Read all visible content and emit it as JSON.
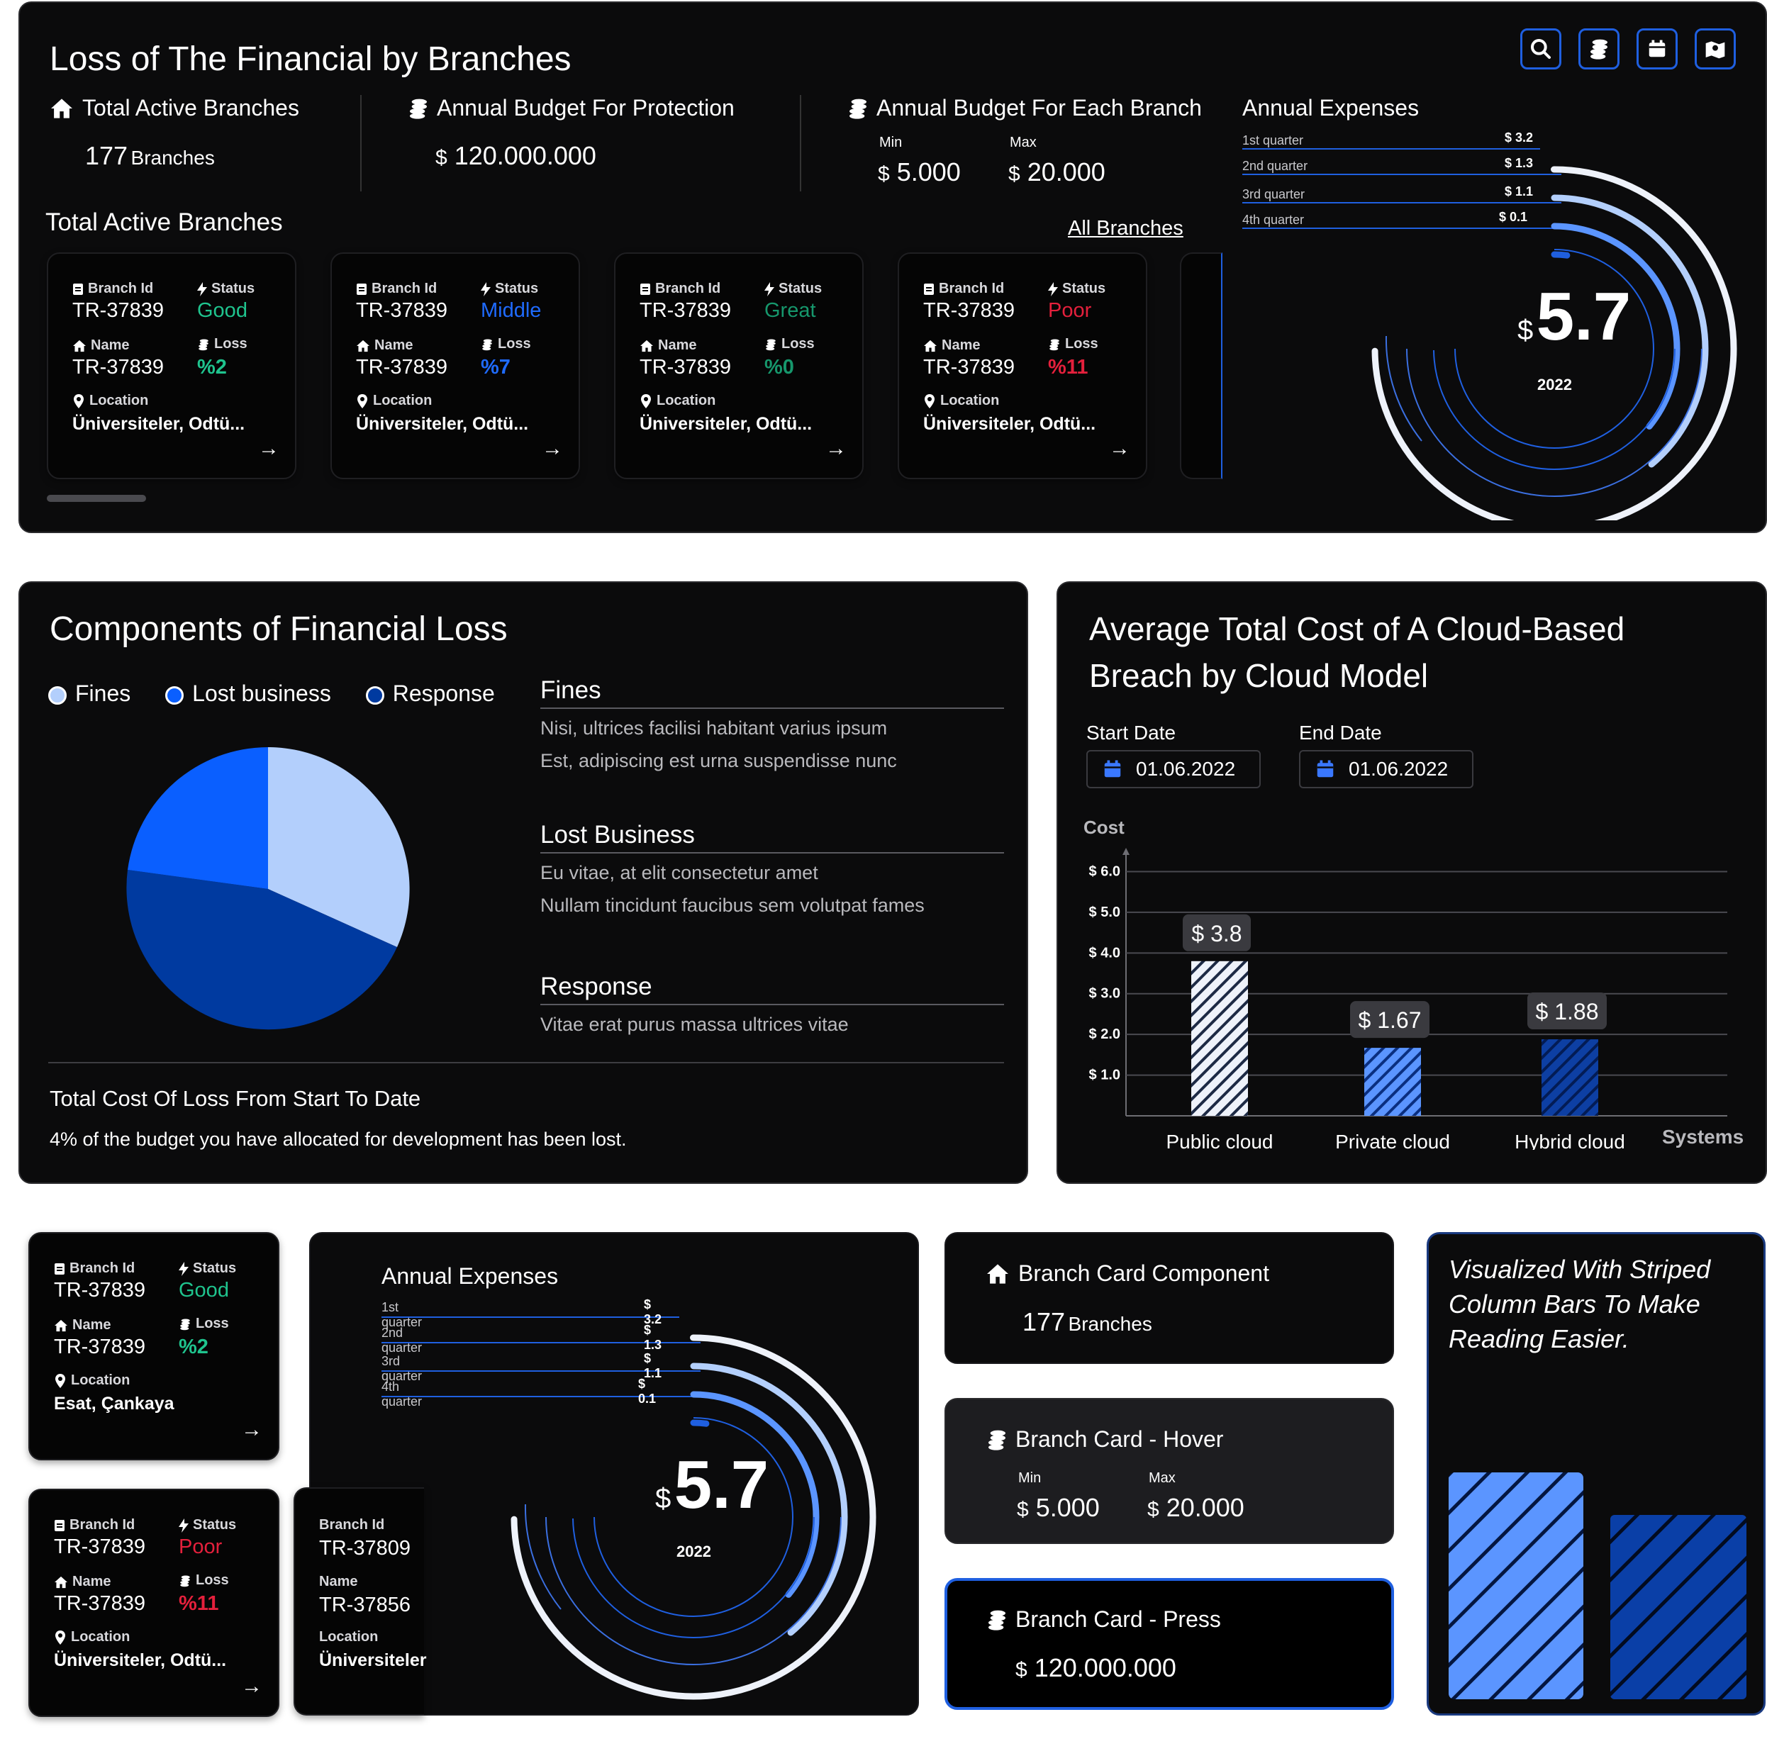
{
  "top": {
    "title": "Loss of The Financial by Branches",
    "stat_active_label": "Total Active Branches",
    "stat_active_count": "177",
    "stat_active_unit": "Branches",
    "stat_protection_label": "Annual Budget For Protection",
    "stat_protection_currency": "$",
    "stat_protection_value": "120.000.000",
    "stat_each_label": "Annual Budget For Each Branch",
    "stat_each_min_label": "Min",
    "stat_each_max_label": "Max",
    "stat_each_currency": "$",
    "stat_each_min": "5.000",
    "stat_each_max": "20.000",
    "section_title": "Total Active Branches",
    "all_branches_link": "All Branches"
  },
  "branch_card_labels": {
    "id": "Branch Id",
    "status": "Status",
    "name": "Name",
    "loss": "Loss",
    "location": "Location",
    "arrow": "→"
  },
  "branch_cards": [
    {
      "id": "TR-37839",
      "status": "Good",
      "name": "TR-37839",
      "loss": "%2",
      "location": "Üniversiteler, Odtü..."
    },
    {
      "id": "TR-37839",
      "status": "Middle",
      "name": "TR-37839",
      "loss": "%7",
      "location": "Üniversiteler, Odtü..."
    },
    {
      "id": "TR-37839",
      "status": "Great",
      "name": "TR-37839",
      "loss": "%0",
      "location": "Üniversiteler, Odtü..."
    },
    {
      "id": "TR-37839",
      "status": "Poor",
      "name": "TR-37839",
      "loss": "%11",
      "location": "Üniversiteler, Odtü..."
    }
  ],
  "annual_expenses": {
    "title": "Annual Expenses",
    "quarters": [
      {
        "label": "1st quarter",
        "value": "$ 3.2"
      },
      {
        "label": "2nd quarter",
        "value": "$ 1.3"
      },
      {
        "label": "3rd quarter",
        "value": "$ 1.1"
      },
      {
        "label": "4th quarter",
        "value": "$ 0.1"
      }
    ],
    "currency": "$",
    "total": "5.7",
    "year": "2022"
  },
  "components": {
    "title": "Components of Financial Loss",
    "legend": [
      "Fines",
      "Lost business",
      "Response"
    ],
    "items": [
      {
        "title": "Fines",
        "line1": "Nisi, ultrices facilisi habitant varius ipsum",
        "line2": "Est, adipiscing est urna suspendisse nunc"
      },
      {
        "title": "Lost Business",
        "line1": "Eu vitae, at elit consectetur amet",
        "line2": "Nullam tincidunt faucibus sem volutpat fames"
      },
      {
        "title": "Response",
        "line1": "Vitae erat purus massa ultrices vitae",
        "line2": ""
      }
    ],
    "total_title": "Total Cost Of Loss From Start To Date",
    "total_text": "4% of the budget you have allocated for development has been lost.",
    "colors": {
      "fines": "#b3cffc",
      "lost": "#0a5fff",
      "response": "#003aa0"
    }
  },
  "cloud": {
    "title_line1": "Average Total Cost of A Cloud-Based",
    "title_line2": "Breach by Cloud Model",
    "start_label": "Start Date",
    "end_label": "End Date",
    "start_value": "01.06.2022",
    "end_value": "01.06.2022",
    "y_axis_label": "Cost",
    "x_axis_label": "Systems"
  },
  "chart_data": {
    "type": "bar",
    "title": "Average Total Cost of A Cloud-Based Breach by Cloud Model",
    "xlabel": "Systems",
    "ylabel": "Cost",
    "categories": [
      "Public cloud",
      "Private cloud",
      "Hybrid cloud"
    ],
    "values": [
      3.8,
      1.67,
      1.88
    ],
    "value_labels": [
      "$ 3.8",
      "$ 1.67",
      "$ 1.88"
    ],
    "ticks": [
      "$ 1.0",
      "$ 2.0",
      "$ 3.0",
      "$ 4.0",
      "$ 5.0",
      "$ 6.0"
    ],
    "ylim": [
      0,
      6.2
    ],
    "grid": true
  },
  "small_cards": [
    {
      "id": "TR-37839",
      "status": "Good",
      "name": "TR-37839",
      "loss": "%2",
      "location": "Esat, Çankaya"
    },
    {
      "id": "TR-37839",
      "status": "Poor",
      "name": "TR-37839",
      "loss": "%11",
      "location": "Üniversiteler, Odtü..."
    },
    {
      "id": "TR-37809",
      "name": "TR-37856",
      "location": "Üniversiteler"
    }
  ],
  "component_cards": {
    "branch_title": "Branch Card Component",
    "branch_count": "177",
    "branch_unit": "Branches",
    "hover_title": "Branch Card - Hover",
    "hover_min_label": "Min",
    "hover_max_label": "Max",
    "hover_currency": "$",
    "hover_min": "5.000",
    "hover_max": "20.000",
    "press_title": "Branch Card - Press",
    "press_currency": "$",
    "press_value": "120.000.000"
  },
  "striped": {
    "text": "Visualized With Striped Column Bars To Make Reading Easier."
  }
}
